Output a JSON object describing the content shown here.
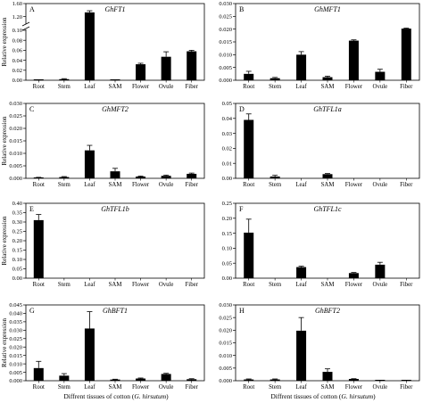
{
  "chart_data": [
    {
      "type": "bar",
      "letter": "A",
      "gene": "GhFT1",
      "ylabel": "Relative expression",
      "categories": [
        "Root",
        "Stem",
        "Leaf",
        "SAM",
        "Flower",
        "Ovule",
        "Fiber"
      ],
      "broken_axis": true,
      "ylim_lower": [
        0,
        0.1
      ],
      "yticks_lower": [
        "0.00",
        "0.02",
        "0.04",
        "0.06",
        "0.08",
        "0.10"
      ],
      "ylim_upper": [
        1.0,
        1.6
      ],
      "yticks_upper": [
        "1.20",
        "1.60"
      ],
      "values": [
        0.0003,
        0.0022,
        1.33,
        0.0003,
        0.032,
        0.047,
        0.058
      ],
      "errors": [
        0.0002,
        0.001,
        0.05,
        0.0002,
        0.002,
        0.01,
        0.002
      ]
    },
    {
      "type": "bar",
      "letter": "B",
      "gene": "GhMFT1",
      "ylabel": "",
      "categories": [
        "Root",
        "Stem",
        "Leaf",
        "SAM",
        "Flower",
        "Ovule",
        "Fiber"
      ],
      "ylim": [
        0,
        0.03
      ],
      "yticks": [
        "0.000",
        "0.005",
        "0.010",
        "0.015",
        "0.020",
        "0.025",
        "0.030"
      ],
      "values": [
        0.0025,
        0.0008,
        0.01,
        0.0012,
        0.0155,
        0.0033,
        0.0202
      ],
      "errors": [
        0.001,
        0.0003,
        0.0012,
        0.0004,
        0.0003,
        0.001,
        0.0002
      ]
    },
    {
      "type": "bar",
      "letter": "C",
      "gene": "GhMFT2",
      "ylabel": "Relative expression",
      "categories": [
        "Root",
        "Stem",
        "Leaf",
        "SAM",
        "Flower",
        "Ovule",
        "Fiber"
      ],
      "ylim": [
        0,
        0.03
      ],
      "yticks": [
        "0.000",
        "0.005",
        "0.010",
        "0.015",
        "0.020",
        "0.025",
        "0.030"
      ],
      "values": [
        0.0003,
        0.0005,
        0.0112,
        0.0028,
        0.0007,
        0.001,
        0.0018
      ],
      "errors": [
        0.0001,
        0.0002,
        0.002,
        0.0012,
        0.0002,
        0.0003,
        0.0003
      ]
    },
    {
      "type": "bar",
      "letter": "D",
      "gene": "GhTFL1a",
      "ylabel": "",
      "categories": [
        "Root",
        "Stem",
        "Leaf",
        "SAM",
        "Flower",
        "Ovule",
        "Fiber"
      ],
      "ylim": [
        0,
        0.05
      ],
      "yticks": [
        "0.00",
        "0.01",
        "0.02",
        "0.03",
        "0.04",
        "0.05"
      ],
      "values": [
        0.039,
        0.0012,
        0.0,
        0.0028,
        0.0,
        0.0,
        0.0
      ],
      "errors": [
        0.004,
        0.0008,
        0.0,
        0.0004,
        0.0,
        0.0,
        0.0
      ]
    },
    {
      "type": "bar",
      "letter": "E",
      "gene": "GhTFL1b",
      "ylabel": "Relative expression",
      "categories": [
        "Root",
        "Stem",
        "Leaf",
        "SAM",
        "Flower",
        "Ovule",
        "Fiber"
      ],
      "ylim": [
        0,
        0.4
      ],
      "yticks": [
        "0.00",
        "0.05",
        "0.10",
        "0.15",
        "0.20",
        "0.25",
        "0.30",
        "0.35",
        "0.40"
      ],
      "values": [
        0.31,
        0.0,
        0.0,
        0.0,
        0.0,
        0.0,
        0.0
      ],
      "errors": [
        0.03,
        0.0,
        0.0,
        0.0,
        0.0,
        0.0,
        0.0
      ]
    },
    {
      "type": "bar",
      "letter": "F",
      "gene": "GhTFL1c",
      "ylabel": "",
      "categories": [
        "Root",
        "Stem",
        "Leaf",
        "SAM",
        "Flower",
        "Ovule",
        "Fiber"
      ],
      "ylim": [
        0,
        0.25
      ],
      "yticks": [
        "0.00",
        "0.05",
        "0.10",
        "0.15",
        "0.20",
        "0.25"
      ],
      "values": [
        0.152,
        0.0,
        0.037,
        0.0,
        0.017,
        0.045,
        0.0
      ],
      "errors": [
        0.045,
        0.0,
        0.003,
        0.0,
        0.002,
        0.008,
        0.0
      ]
    },
    {
      "type": "bar",
      "letter": "G",
      "gene": "GhBFT1",
      "ylabel": "Relative expression",
      "categories": [
        "Root",
        "Stem",
        "Leaf",
        "SAM",
        "Flower",
        "Ovule",
        "Fiber"
      ],
      "ylim": [
        0,
        0.045
      ],
      "yticks": [
        "0.000",
        "0.005",
        "0.010",
        "0.015",
        "0.020",
        "0.025",
        "0.030",
        "0.035",
        "0.040",
        "0.045"
      ],
      "values": [
        0.0075,
        0.003,
        0.031,
        0.0007,
        0.0013,
        0.004,
        0.0009
      ],
      "errors": [
        0.004,
        0.0012,
        0.01,
        0.0002,
        0.0003,
        0.0004,
        0.0003
      ]
    },
    {
      "type": "bar",
      "letter": "H",
      "gene": "GhBFT2",
      "ylabel": "",
      "categories": [
        "Root",
        "Stem",
        "Leaf",
        "SAM",
        "Flower",
        "Ovule",
        "Fiber"
      ],
      "ylim": [
        0,
        0.03
      ],
      "yticks": [
        "0.000",
        "0.005",
        "0.010",
        "0.015",
        "0.020",
        "0.025",
        "0.030"
      ],
      "values": [
        0.0005,
        0.0005,
        0.0198,
        0.0035,
        0.0007,
        0.0001,
        0.0001
      ],
      "errors": [
        0.0002,
        0.0002,
        0.0052,
        0.0012,
        0.0001,
        0.0001,
        0.0001
      ]
    }
  ],
  "xlabel": {
    "prefix": "Diffrent tissues of cotton (",
    "species": "G. hirsutum",
    "suffix": ")"
  }
}
